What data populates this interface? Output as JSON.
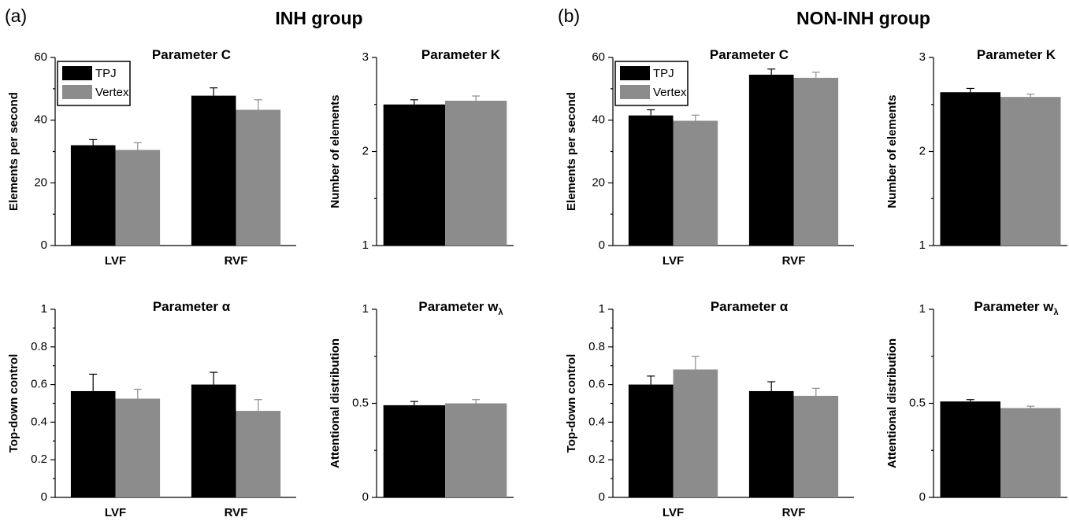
{
  "panels": [
    {
      "label": "(a)",
      "title": "INH group"
    },
    {
      "label": "(b)",
      "title": "NON-INH group"
    }
  ],
  "chart_data": [
    {
      "type": "bar",
      "title": "Parameter C",
      "ylabel": "Elements per second",
      "categories": [
        "LVF",
        "RVF"
      ],
      "legend": true,
      "series": [
        {
          "name": "TPJ",
          "color": "#000000",
          "values": [
            32,
            47.8
          ],
          "errors": [
            1.8,
            2.5
          ]
        },
        {
          "name": "Vertex",
          "color": "#8c8c8c",
          "values": [
            30.5,
            43.3
          ],
          "errors": [
            2.3,
            3.2
          ]
        }
      ],
      "ylim": [
        0,
        60
      ],
      "yticks": [
        0,
        20,
        40,
        60
      ],
      "yminorticks": [
        10,
        30,
        50
      ]
    },
    {
      "type": "bar",
      "title": "Parameter K",
      "ylabel": "Number of elements",
      "categories": [
        null
      ],
      "legend": false,
      "series": [
        {
          "color": "#000000",
          "values": [
            2.5
          ],
          "errors": [
            0.05
          ]
        },
        {
          "color": "#8c8c8c",
          "values": [
            2.54
          ],
          "errors": [
            0.05
          ]
        }
      ],
      "ylim": [
        1,
        3
      ],
      "yticks": [
        1,
        2,
        3
      ],
      "yminorticks": [
        1.5,
        2.5
      ]
    },
    {
      "type": "bar",
      "title": "Parameter α",
      "ylabel": "Top-down control",
      "categories": [
        "LVF",
        "RVF"
      ],
      "legend": false,
      "series": [
        {
          "color": "#000000",
          "values": [
            0.565,
            0.6
          ],
          "errors": [
            0.09,
            0.065
          ]
        },
        {
          "color": "#8c8c8c",
          "values": [
            0.525,
            0.46
          ],
          "errors": [
            0.05,
            0.06
          ]
        }
      ],
      "ylim": [
        0,
        1
      ],
      "yticks": [
        0,
        0.2,
        0.4,
        0.6,
        0.8,
        1
      ],
      "yminorticks": [
        0.1,
        0.3,
        0.5,
        0.7,
        0.9
      ]
    },
    {
      "type": "bar",
      "title": "Parameter w",
      "title_sub": "λ",
      "ylabel": "Attentional distribution",
      "categories": [
        null
      ],
      "legend": false,
      "series": [
        {
          "color": "#000000",
          "values": [
            0.49
          ],
          "errors": [
            0.02
          ]
        },
        {
          "color": "#8c8c8c",
          "values": [
            0.5
          ],
          "errors": [
            0.02
          ]
        }
      ],
      "ylim": [
        0,
        1
      ],
      "yticks": [
        0,
        0.5,
        1
      ],
      "yminorticks": [
        0.25,
        0.75
      ]
    },
    {
      "type": "bar",
      "title": "Parameter C",
      "ylabel": "Elements per second",
      "categories": [
        "LVF",
        "RVF"
      ],
      "legend": true,
      "series": [
        {
          "name": "TPJ",
          "color": "#000000",
          "values": [
            41.5,
            54.5
          ],
          "errors": [
            1.8,
            1.8
          ]
        },
        {
          "name": "Vertex",
          "color": "#8c8c8c",
          "values": [
            39.8,
            53.5
          ],
          "errors": [
            1.8,
            1.8
          ]
        }
      ],
      "ylim": [
        0,
        60
      ],
      "yticks": [
        0,
        20,
        40,
        60
      ],
      "yminorticks": [
        10,
        30,
        50
      ]
    },
    {
      "type": "bar",
      "title": "Parameter K",
      "ylabel": "Number of elements",
      "categories": [
        null
      ],
      "legend": false,
      "series": [
        {
          "color": "#000000",
          "values": [
            2.63
          ],
          "errors": [
            0.04
          ]
        },
        {
          "color": "#8c8c8c",
          "values": [
            2.58
          ],
          "errors": [
            0.03
          ]
        }
      ],
      "ylim": [
        1,
        3
      ],
      "yticks": [
        1,
        2,
        3
      ],
      "yminorticks": [
        1.5,
        2.5
      ]
    },
    {
      "type": "bar",
      "title": "Parameter α",
      "ylabel": "Top-down control",
      "categories": [
        "LVF",
        "RVF"
      ],
      "legend": false,
      "series": [
        {
          "color": "#000000",
          "values": [
            0.6,
            0.565
          ],
          "errors": [
            0.045,
            0.05
          ]
        },
        {
          "color": "#8c8c8c",
          "values": [
            0.68,
            0.54
          ],
          "errors": [
            0.07,
            0.04
          ]
        }
      ],
      "ylim": [
        0,
        1
      ],
      "yticks": [
        0,
        0.2,
        0.4,
        0.6,
        0.8,
        1
      ],
      "yminorticks": [
        0.1,
        0.3,
        0.5,
        0.7,
        0.9
      ]
    },
    {
      "type": "bar",
      "title": "Parameter w",
      "title_sub": "λ",
      "ylabel": "Attentional distribution",
      "categories": [
        null
      ],
      "legend": false,
      "series": [
        {
          "color": "#000000",
          "values": [
            0.51
          ],
          "errors": [
            0.01
          ]
        },
        {
          "color": "#8c8c8c",
          "values": [
            0.475
          ],
          "errors": [
            0.01
          ]
        }
      ],
      "ylim": [
        0,
        1
      ],
      "yticks": [
        0,
        0.5,
        1
      ],
      "yminorticks": [
        0.25,
        0.75
      ]
    }
  ]
}
